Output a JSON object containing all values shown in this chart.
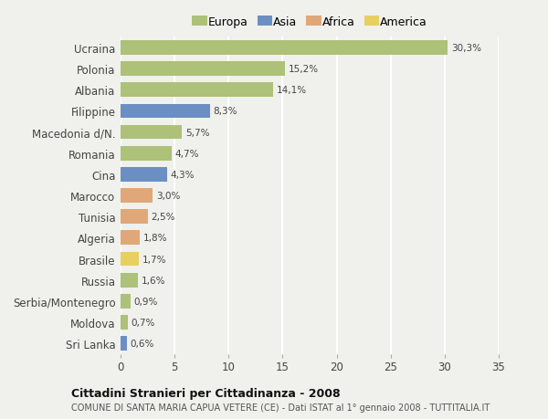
{
  "categories": [
    "Sri Lanka",
    "Moldova",
    "Serbia/Montenegro",
    "Russia",
    "Brasile",
    "Algeria",
    "Tunisia",
    "Marocco",
    "Cina",
    "Romania",
    "Macedonia d/N.",
    "Filippine",
    "Albania",
    "Polonia",
    "Ucraina"
  ],
  "values": [
    0.6,
    0.7,
    0.9,
    1.6,
    1.7,
    1.8,
    2.5,
    3.0,
    4.3,
    4.7,
    5.7,
    8.3,
    14.1,
    15.2,
    30.3
  ],
  "labels": [
    "0,6%",
    "0,7%",
    "0,9%",
    "1,6%",
    "1,7%",
    "1,8%",
    "2,5%",
    "3,0%",
    "4,3%",
    "4,7%",
    "5,7%",
    "8,3%",
    "14,1%",
    "15,2%",
    "30,3%"
  ],
  "continent": [
    "Asia",
    "Europa",
    "Europa",
    "Europa",
    "America",
    "Africa",
    "Africa",
    "Africa",
    "Asia",
    "Europa",
    "Europa",
    "Asia",
    "Europa",
    "Europa",
    "Europa"
  ],
  "colors": {
    "Europa": "#adc178",
    "Asia": "#6b8fc2",
    "Africa": "#e0a878",
    "America": "#e8d060"
  },
  "legend_order": [
    "Europa",
    "Asia",
    "Africa",
    "America"
  ],
  "title1": "Cittadini Stranieri per Cittadinanza - 2008",
  "title2": "COMUNE DI SANTA MARIA CAPUA VETERE (CE) - Dati ISTAT al 1° gennaio 2008 - TUTTITALIA.IT",
  "xlim": [
    0,
    35
  ],
  "xticks": [
    0,
    5,
    10,
    15,
    20,
    25,
    30,
    35
  ],
  "background_color": "#f0f0ec",
  "bar_height": 0.68
}
